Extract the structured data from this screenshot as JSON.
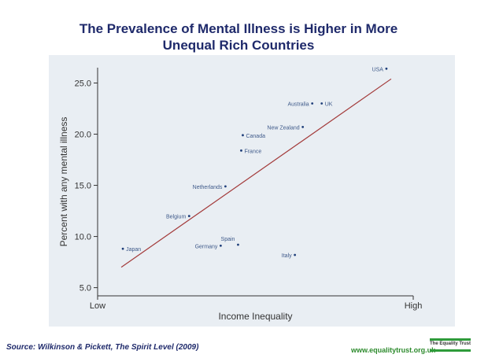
{
  "title_line1": "The Prevalence of Mental Illness is Higher in More",
  "title_line2": "Unequal Rich Countries",
  "source": "Source: Wilkinson & Pickett, The Spirit Level (2009)",
  "website": "www.equalitytrust.org.uk",
  "logo_text": "The Equality Trust",
  "colors": {
    "title": "#1f2a6b",
    "panel": "#e9eef3",
    "point": "#1f3f7a",
    "label": "#3f5a8a",
    "trendline": "#a33a3a",
    "axis": "#333333",
    "logo": "#2e9b3a"
  },
  "chart_data": {
    "type": "scatter",
    "title": "The Prevalence of Mental Illness is Higher in More Unequal Rich Countries",
    "xlabel": "Income Inequality",
    "ylabel": "Percent with any mental illness",
    "x_tick_labels": [
      "Low",
      "High"
    ],
    "xlim": [
      0,
      100
    ],
    "ylim": [
      4.2,
      26.5
    ],
    "yticks": [
      5.0,
      10.0,
      15.0,
      20.0,
      25.0
    ],
    "ytick_labels": [
      "5.0",
      "10.0",
      "15.0",
      "20.0",
      "25.0"
    ],
    "grid": false,
    "points": [
      {
        "label": "Japan",
        "x": 8,
        "y": 8.8
      },
      {
        "label": "Germany",
        "x": 39,
        "y": 9.1
      },
      {
        "label": "Spain",
        "x": 44.5,
        "y": 9.2
      },
      {
        "label": "Italy",
        "x": 62.5,
        "y": 8.2
      },
      {
        "label": "Belgium",
        "x": 29,
        "y": 12.0
      },
      {
        "label": "Netherlands",
        "x": 40.5,
        "y": 14.9
      },
      {
        "label": "France",
        "x": 45.5,
        "y": 18.4
      },
      {
        "label": "Canada",
        "x": 46,
        "y": 19.9
      },
      {
        "label": "New Zealand",
        "x": 65,
        "y": 20.7
      },
      {
        "label": "Australia",
        "x": 68,
        "y": 23.0
      },
      {
        "label": "UK",
        "x": 71,
        "y": 23.0
      },
      {
        "label": "USA",
        "x": 91.5,
        "y": 26.4
      }
    ],
    "trendline": {
      "x": [
        7.5,
        93
      ],
      "y": [
        7.0,
        25.4
      ]
    }
  }
}
